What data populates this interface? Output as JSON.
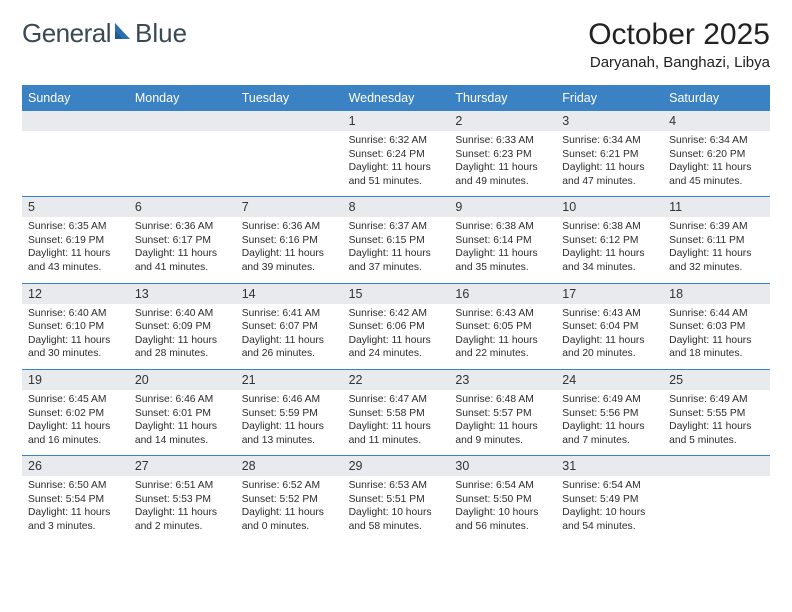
{
  "logo": {
    "word1": "General",
    "word2": "Blue"
  },
  "title": "October 2025",
  "location": "Daryanah, Banghazi, Libya",
  "colors": {
    "header_blue": "#3b82c4",
    "date_bg": "#e8eaed",
    "text": "#1a1a1a"
  },
  "weekdays": [
    "Sunday",
    "Monday",
    "Tuesday",
    "Wednesday",
    "Thursday",
    "Friday",
    "Saturday"
  ],
  "weeks": [
    {
      "dates": [
        "",
        "",
        "",
        "1",
        "2",
        "3",
        "4"
      ],
      "cells": [
        {},
        {},
        {},
        {
          "sunrise": "Sunrise: 6:32 AM",
          "sunset": "Sunset: 6:24 PM",
          "day1": "Daylight: 11 hours",
          "day2": "and 51 minutes."
        },
        {
          "sunrise": "Sunrise: 6:33 AM",
          "sunset": "Sunset: 6:23 PM",
          "day1": "Daylight: 11 hours",
          "day2": "and 49 minutes."
        },
        {
          "sunrise": "Sunrise: 6:34 AM",
          "sunset": "Sunset: 6:21 PM",
          "day1": "Daylight: 11 hours",
          "day2": "and 47 minutes."
        },
        {
          "sunrise": "Sunrise: 6:34 AM",
          "sunset": "Sunset: 6:20 PM",
          "day1": "Daylight: 11 hours",
          "day2": "and 45 minutes."
        }
      ]
    },
    {
      "dates": [
        "5",
        "6",
        "7",
        "8",
        "9",
        "10",
        "11"
      ],
      "cells": [
        {
          "sunrise": "Sunrise: 6:35 AM",
          "sunset": "Sunset: 6:19 PM",
          "day1": "Daylight: 11 hours",
          "day2": "and 43 minutes."
        },
        {
          "sunrise": "Sunrise: 6:36 AM",
          "sunset": "Sunset: 6:17 PM",
          "day1": "Daylight: 11 hours",
          "day2": "and 41 minutes."
        },
        {
          "sunrise": "Sunrise: 6:36 AM",
          "sunset": "Sunset: 6:16 PM",
          "day1": "Daylight: 11 hours",
          "day2": "and 39 minutes."
        },
        {
          "sunrise": "Sunrise: 6:37 AM",
          "sunset": "Sunset: 6:15 PM",
          "day1": "Daylight: 11 hours",
          "day2": "and 37 minutes."
        },
        {
          "sunrise": "Sunrise: 6:38 AM",
          "sunset": "Sunset: 6:14 PM",
          "day1": "Daylight: 11 hours",
          "day2": "and 35 minutes."
        },
        {
          "sunrise": "Sunrise: 6:38 AM",
          "sunset": "Sunset: 6:12 PM",
          "day1": "Daylight: 11 hours",
          "day2": "and 34 minutes."
        },
        {
          "sunrise": "Sunrise: 6:39 AM",
          "sunset": "Sunset: 6:11 PM",
          "day1": "Daylight: 11 hours",
          "day2": "and 32 minutes."
        }
      ]
    },
    {
      "dates": [
        "12",
        "13",
        "14",
        "15",
        "16",
        "17",
        "18"
      ],
      "cells": [
        {
          "sunrise": "Sunrise: 6:40 AM",
          "sunset": "Sunset: 6:10 PM",
          "day1": "Daylight: 11 hours",
          "day2": "and 30 minutes."
        },
        {
          "sunrise": "Sunrise: 6:40 AM",
          "sunset": "Sunset: 6:09 PM",
          "day1": "Daylight: 11 hours",
          "day2": "and 28 minutes."
        },
        {
          "sunrise": "Sunrise: 6:41 AM",
          "sunset": "Sunset: 6:07 PM",
          "day1": "Daylight: 11 hours",
          "day2": "and 26 minutes."
        },
        {
          "sunrise": "Sunrise: 6:42 AM",
          "sunset": "Sunset: 6:06 PM",
          "day1": "Daylight: 11 hours",
          "day2": "and 24 minutes."
        },
        {
          "sunrise": "Sunrise: 6:43 AM",
          "sunset": "Sunset: 6:05 PM",
          "day1": "Daylight: 11 hours",
          "day2": "and 22 minutes."
        },
        {
          "sunrise": "Sunrise: 6:43 AM",
          "sunset": "Sunset: 6:04 PM",
          "day1": "Daylight: 11 hours",
          "day2": "and 20 minutes."
        },
        {
          "sunrise": "Sunrise: 6:44 AM",
          "sunset": "Sunset: 6:03 PM",
          "day1": "Daylight: 11 hours",
          "day2": "and 18 minutes."
        }
      ]
    },
    {
      "dates": [
        "19",
        "20",
        "21",
        "22",
        "23",
        "24",
        "25"
      ],
      "cells": [
        {
          "sunrise": "Sunrise: 6:45 AM",
          "sunset": "Sunset: 6:02 PM",
          "day1": "Daylight: 11 hours",
          "day2": "and 16 minutes."
        },
        {
          "sunrise": "Sunrise: 6:46 AM",
          "sunset": "Sunset: 6:01 PM",
          "day1": "Daylight: 11 hours",
          "day2": "and 14 minutes."
        },
        {
          "sunrise": "Sunrise: 6:46 AM",
          "sunset": "Sunset: 5:59 PM",
          "day1": "Daylight: 11 hours",
          "day2": "and 13 minutes."
        },
        {
          "sunrise": "Sunrise: 6:47 AM",
          "sunset": "Sunset: 5:58 PM",
          "day1": "Daylight: 11 hours",
          "day2": "and 11 minutes."
        },
        {
          "sunrise": "Sunrise: 6:48 AM",
          "sunset": "Sunset: 5:57 PM",
          "day1": "Daylight: 11 hours",
          "day2": "and 9 minutes."
        },
        {
          "sunrise": "Sunrise: 6:49 AM",
          "sunset": "Sunset: 5:56 PM",
          "day1": "Daylight: 11 hours",
          "day2": "and 7 minutes."
        },
        {
          "sunrise": "Sunrise: 6:49 AM",
          "sunset": "Sunset: 5:55 PM",
          "day1": "Daylight: 11 hours",
          "day2": "and 5 minutes."
        }
      ]
    },
    {
      "dates": [
        "26",
        "27",
        "28",
        "29",
        "30",
        "31",
        ""
      ],
      "cells": [
        {
          "sunrise": "Sunrise: 6:50 AM",
          "sunset": "Sunset: 5:54 PM",
          "day1": "Daylight: 11 hours",
          "day2": "and 3 minutes."
        },
        {
          "sunrise": "Sunrise: 6:51 AM",
          "sunset": "Sunset: 5:53 PM",
          "day1": "Daylight: 11 hours",
          "day2": "and 2 minutes."
        },
        {
          "sunrise": "Sunrise: 6:52 AM",
          "sunset": "Sunset: 5:52 PM",
          "day1": "Daylight: 11 hours",
          "day2": "and 0 minutes."
        },
        {
          "sunrise": "Sunrise: 6:53 AM",
          "sunset": "Sunset: 5:51 PM",
          "day1": "Daylight: 10 hours",
          "day2": "and 58 minutes."
        },
        {
          "sunrise": "Sunrise: 6:54 AM",
          "sunset": "Sunset: 5:50 PM",
          "day1": "Daylight: 10 hours",
          "day2": "and 56 minutes."
        },
        {
          "sunrise": "Sunrise: 6:54 AM",
          "sunset": "Sunset: 5:49 PM",
          "day1": "Daylight: 10 hours",
          "day2": "and 54 minutes."
        },
        {}
      ]
    }
  ]
}
